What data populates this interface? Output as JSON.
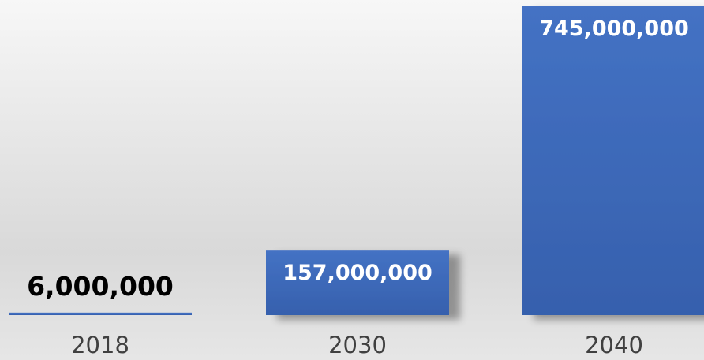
{
  "chart_data": {
    "type": "bar",
    "categories": [
      "2018",
      "2030",
      "2040"
    ],
    "values": [
      6000000,
      157000000,
      745000000
    ],
    "value_labels": [
      "6,000,000",
      "157,000,000",
      "745,000,000"
    ],
    "ylim": [
      0,
      745000000
    ],
    "grid": false,
    "legend": "none",
    "colors": {
      "bar_top": "#4472c4",
      "bar_bottom": "#3660ad",
      "label_on_bar": "#ffffff",
      "label_above_bar": "#000000",
      "tick_label": "#404040"
    }
  }
}
